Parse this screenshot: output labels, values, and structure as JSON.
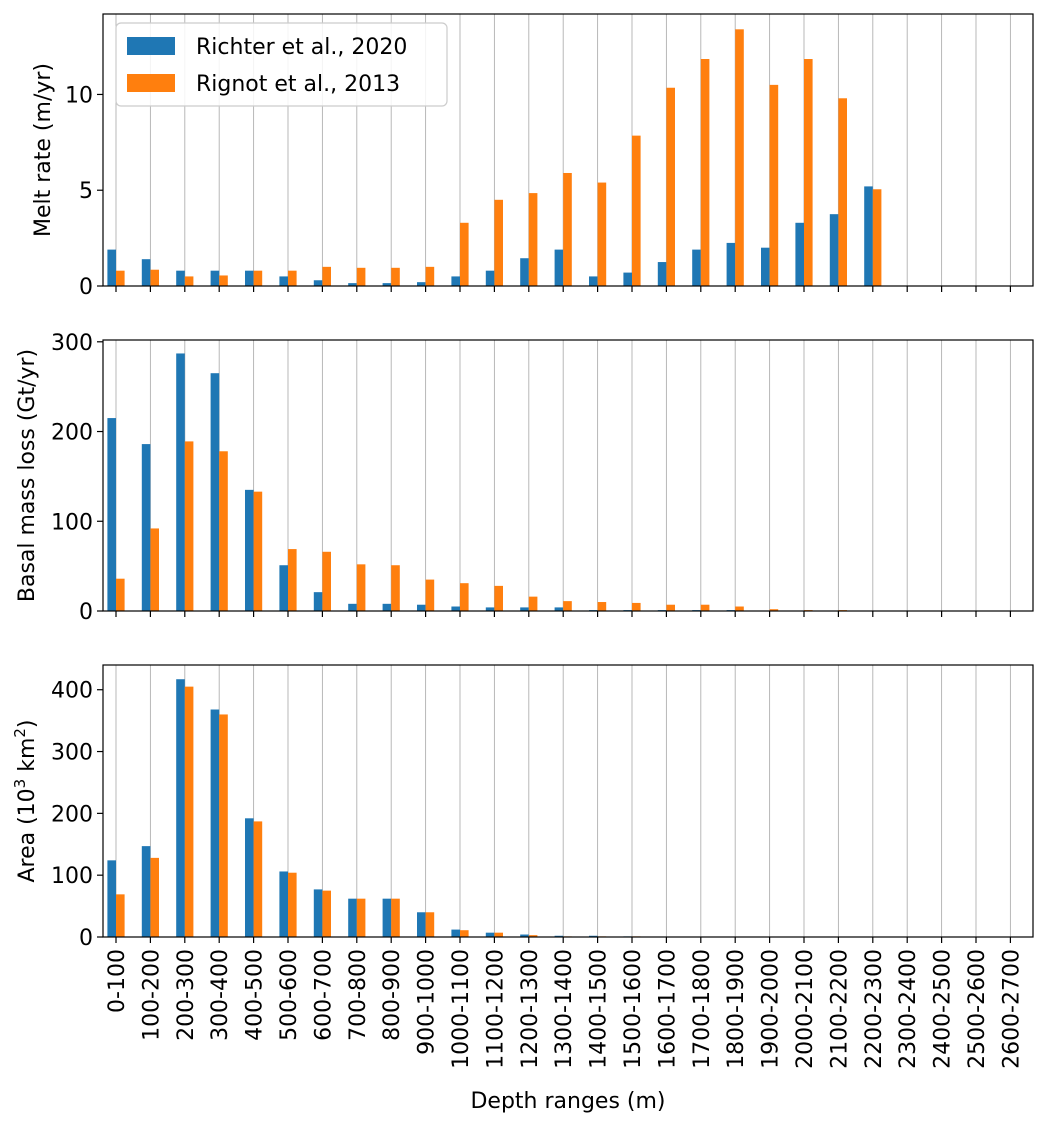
{
  "colors": {
    "richter": "#1f77b4",
    "rignot": "#ff7f0e",
    "grid": "#b0b0b0"
  },
  "chart_data": [
    {
      "type": "bar",
      "ylabel": "Melt rate (m/yr)",
      "ylim": [
        0,
        14.2
      ],
      "yticks": [
        0,
        5,
        10
      ],
      "grid": "vertical",
      "legend_position": "top-left",
      "categories": [
        "0-100",
        "100-200",
        "200-300",
        "300-400",
        "400-500",
        "500-600",
        "600-700",
        "700-800",
        "800-900",
        "900-1000",
        "1000-1100",
        "1100-1200",
        "1200-1300",
        "1300-1400",
        "1400-1500",
        "1500-1600",
        "1600-1700",
        "1700-1800",
        "1800-1900",
        "1900-2000",
        "2000-2100",
        "2100-2200",
        "2200-2300",
        "2300-2400",
        "2400-2500",
        "2500-2600",
        "2600-2700"
      ],
      "series": [
        {
          "name": "Richter et al., 2020",
          "values": [
            1.9,
            1.4,
            0.8,
            0.8,
            0.8,
            0.5,
            0.3,
            0.15,
            0.15,
            0.2,
            0.5,
            0.8,
            1.45,
            1.9,
            0.5,
            0.7,
            1.25,
            1.9,
            2.25,
            2.0,
            3.3,
            3.75,
            5.2,
            0,
            0,
            0,
            0
          ]
        },
        {
          "name": "Rignot et al., 2013",
          "values": [
            0.8,
            0.85,
            0.5,
            0.55,
            0.8,
            0.8,
            1.0,
            0.95,
            0.95,
            1.0,
            3.3,
            4.5,
            4.85,
            5.9,
            5.4,
            7.85,
            10.35,
            11.85,
            13.4,
            10.5,
            11.85,
            9.8,
            5.05,
            0,
            0,
            0,
            0
          ]
        }
      ]
    },
    {
      "type": "bar",
      "ylabel": "Basal mass loss (Gt/yr)",
      "ylim": [
        0,
        302
      ],
      "yticks": [
        0,
        100,
        200,
        300
      ],
      "grid": "vertical",
      "categories": [
        "0-100",
        "100-200",
        "200-300",
        "300-400",
        "400-500",
        "500-600",
        "600-700",
        "700-800",
        "800-900",
        "900-1000",
        "1000-1100",
        "1100-1200",
        "1200-1300",
        "1300-1400",
        "1400-1500",
        "1500-1600",
        "1600-1700",
        "1700-1800",
        "1800-1900",
        "1900-2000",
        "2000-2100",
        "2100-2200",
        "2200-2300",
        "2300-2400",
        "2400-2500",
        "2500-2600",
        "2600-2700"
      ],
      "series": [
        {
          "name": "Richter et al., 2020",
          "values": [
            215,
            186,
            287,
            265,
            135,
            51,
            21,
            8,
            8,
            7,
            5,
            4,
            4,
            4,
            1,
            1,
            1,
            1,
            1,
            0,
            0,
            0,
            0,
            0,
            0,
            0,
            0
          ]
        },
        {
          "name": "Rignot et al., 2013",
          "values": [
            36,
            92,
            189,
            178,
            133,
            69,
            66,
            52,
            51,
            35,
            31,
            28,
            16,
            11,
            10,
            9,
            7,
            7,
            5,
            2,
            1,
            1,
            0,
            0,
            0,
            0,
            0
          ]
        }
      ]
    },
    {
      "type": "bar",
      "ylabel_main": "Area (10",
      "ylabel_sup1": "3",
      "ylabel_mid": " km",
      "ylabel_sup2": "2",
      "ylabel_end": ")",
      "ylim": [
        0,
        440
      ],
      "yticks": [
        0,
        100,
        200,
        300,
        400
      ],
      "grid": "vertical",
      "xlabel": "Depth ranges (m)",
      "categories": [
        "0-100",
        "100-200",
        "200-300",
        "300-400",
        "400-500",
        "500-600",
        "600-700",
        "700-800",
        "800-900",
        "900-1000",
        "1000-1100",
        "1100-1200",
        "1200-1300",
        "1300-1400",
        "1400-1500",
        "1500-1600",
        "1600-1700",
        "1700-1800",
        "1800-1900",
        "1900-2000",
        "2000-2100",
        "2100-2200",
        "2200-2300",
        "2300-2400",
        "2400-2500",
        "2500-2600",
        "2600-2700"
      ],
      "series": [
        {
          "name": "Richter et al., 2020",
          "values": [
            124,
            147,
            417,
            368,
            192,
            106,
            77,
            62,
            62,
            40,
            12,
            7,
            4,
            2,
            2,
            1,
            0,
            0,
            0,
            0,
            0,
            0,
            0,
            0,
            0,
            0,
            0
          ]
        },
        {
          "name": "Rignot et al., 2013",
          "values": [
            69,
            128,
            405,
            360,
            187,
            104,
            75,
            62,
            62,
            40,
            11,
            7,
            3,
            1,
            1,
            1,
            0,
            0,
            0,
            0,
            0,
            0,
            0,
            0,
            0,
            0,
            0
          ]
        }
      ]
    }
  ]
}
